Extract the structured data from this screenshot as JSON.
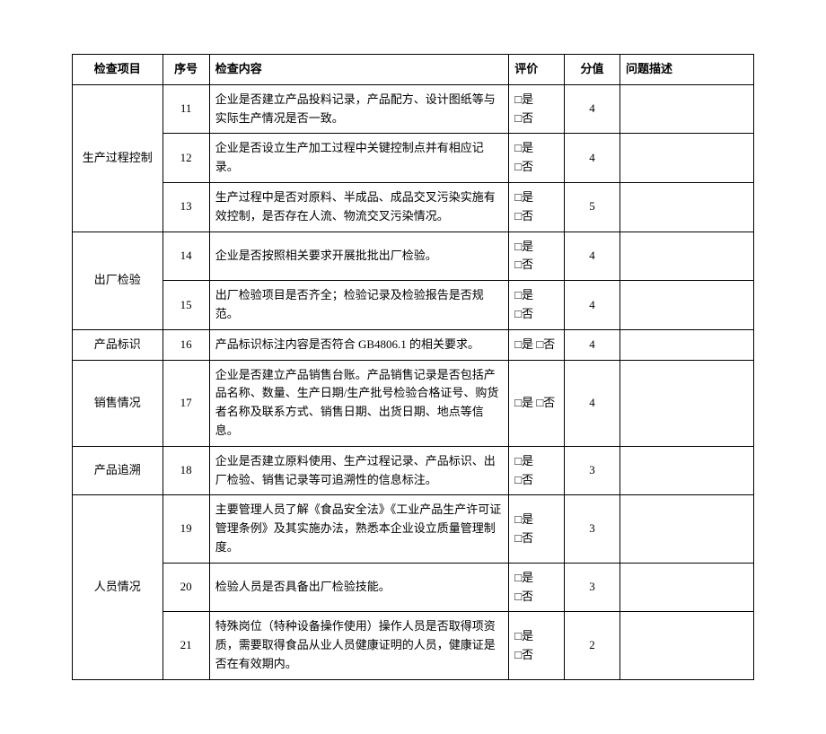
{
  "columns": {
    "item": "检查项目",
    "idx": "序号",
    "content": "检查内容",
    "eval": "评价",
    "score": "分值",
    "issue": "问题描述"
  },
  "eval_two_line": "□是\n□否",
  "eval_one_line": "□是 □否",
  "groups": [
    {
      "item": "生产过程控制",
      "rows": [
        {
          "idx": "11",
          "content": "企业是否建立产品投料记录，产品配方、设计图纸等与实际生产情况是否一致。",
          "eval_mode": "two",
          "score": "4"
        },
        {
          "idx": "12",
          "content": "企业是否设立生产加工过程中关键控制点并有相应记录。",
          "eval_mode": "two",
          "score": "4"
        },
        {
          "idx": "13",
          "content": "生产过程中是否对原料、半成品、成品交叉污染实施有效控制，是否存在人流、物流交叉污染情况。",
          "eval_mode": "two",
          "score": "5"
        }
      ]
    },
    {
      "item": "出厂检验",
      "rows": [
        {
          "idx": "14",
          "content": "企业是否按照相关要求开展批批出厂检验。",
          "eval_mode": "two",
          "score": "4"
        },
        {
          "idx": "15",
          "content": "出厂检验项目是否齐全；检验记录及检验报告是否规范。",
          "eval_mode": "two",
          "score": "4"
        }
      ]
    },
    {
      "item": "产品标识",
      "rows": [
        {
          "idx": "16",
          "content": "产品标识标注内容是否符合 GB4806.1 的相关要求。",
          "eval_mode": "one",
          "score": "4"
        }
      ]
    },
    {
      "item": "销售情况",
      "rows": [
        {
          "idx": "17",
          "content": "企业是否建立产品销售台账。产品销售记录是否包括产品名称、数量、生产日期/生产批号检验合格证号、购货者名称及联系方式、销售日期、出货日期、地点等信息。",
          "eval_mode": "one",
          "score": "4"
        }
      ]
    },
    {
      "item": "产品追溯",
      "rows": [
        {
          "idx": "18",
          "content": "企业是否建立原料使用、生产过程记录、产品标识、出厂检验、销售记录等可追溯性的信息标注。",
          "eval_mode": "two",
          "score": "3"
        }
      ]
    },
    {
      "item": "人员情况",
      "rows": [
        {
          "idx": "19",
          "content": "主要管理人员了解《食品安全法》《工业产品生产许可证管理条例》及其实施办法，熟悉本企业设立质量管理制度。",
          "eval_mode": "two",
          "score": "3"
        },
        {
          "idx": "20",
          "content": "检验人员是否具备出厂检验技能。",
          "eval_mode": "two",
          "score": "3"
        },
        {
          "idx": "21",
          "content": "特殊岗位（特种设备操作使用）操作人员是否取得项资质，需要取得食品从业人员健康证明的人员，健康证是否在有效期内。",
          "eval_mode": "two",
          "score": "2"
        }
      ]
    }
  ]
}
